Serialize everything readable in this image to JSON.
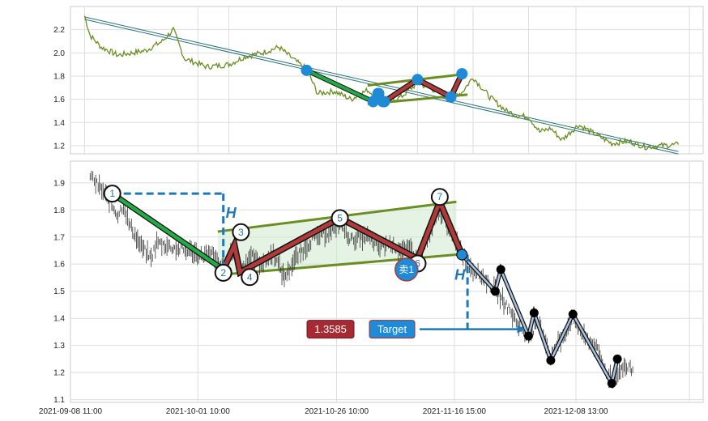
{
  "chart_data": [
    {
      "type": "line",
      "title": "",
      "panel": "overview",
      "ylim": [
        1.13,
        2.4
      ],
      "y_ticks": [
        1.2,
        1.4,
        1.6,
        1.8,
        2.0,
        2.2
      ],
      "grid": true,
      "price_color": "#6b8e23",
      "trendline": {
        "from": {
          "x": "2021-09-11",
          "y": 2.31
        },
        "to": {
          "x": "2021-12-27",
          "y": 1.15
        }
      },
      "price_keypoints": [
        {
          "x": "2021-09-11",
          "y": 2.32
        },
        {
          "x": "2021-09-12",
          "y": 2.15
        },
        {
          "x": "2021-09-14",
          "y": 2.05
        },
        {
          "x": "2021-09-17",
          "y": 1.98
        },
        {
          "x": "2021-09-22",
          "y": 2.02
        },
        {
          "x": "2021-09-25",
          "y": 2.1
        },
        {
          "x": "2021-09-27",
          "y": 2.2
        },
        {
          "x": "2021-09-29",
          "y": 1.95
        },
        {
          "x": "2021-10-03",
          "y": 1.88
        },
        {
          "x": "2021-10-07",
          "y": 1.9
        },
        {
          "x": "2021-10-10",
          "y": 1.97
        },
        {
          "x": "2021-10-13",
          "y": 2.0
        },
        {
          "x": "2021-10-16",
          "y": 2.05
        },
        {
          "x": "2021-10-19",
          "y": 1.93
        },
        {
          "x": "2021-10-21",
          "y": 1.86
        },
        {
          "x": "2021-10-23",
          "y": 1.65
        },
        {
          "x": "2021-10-26",
          "y": 1.67
        },
        {
          "x": "2021-10-29",
          "y": 1.6
        },
        {
          "x": "2021-11-01",
          "y": 1.68
        },
        {
          "x": "2021-11-04",
          "y": 1.57
        },
        {
          "x": "2021-11-07",
          "y": 1.62
        },
        {
          "x": "2021-11-10",
          "y": 1.74
        },
        {
          "x": "2021-11-13",
          "y": 1.68
        },
        {
          "x": "2021-11-16",
          "y": 1.63
        },
        {
          "x": "2021-11-18",
          "y": 1.66
        },
        {
          "x": "2021-11-20",
          "y": 1.79
        },
        {
          "x": "2021-11-23",
          "y": 1.62
        },
        {
          "x": "2021-11-26",
          "y": 1.5
        },
        {
          "x": "2021-11-28",
          "y": 1.46
        },
        {
          "x": "2021-11-30",
          "y": 1.45
        },
        {
          "x": "2021-12-02",
          "y": 1.32
        },
        {
          "x": "2021-12-04",
          "y": 1.35
        },
        {
          "x": "2021-12-06",
          "y": 1.25
        },
        {
          "x": "2021-12-09",
          "y": 1.38
        },
        {
          "x": "2021-12-12",
          "y": 1.3
        },
        {
          "x": "2021-12-15",
          "y": 1.22
        },
        {
          "x": "2021-12-18",
          "y": 1.24
        },
        {
          "x": "2021-12-21",
          "y": 1.19
        },
        {
          "x": "2021-12-24",
          "y": 1.2
        },
        {
          "x": "2021-12-27",
          "y": 1.21
        }
      ],
      "pattern_points": [
        {
          "x": "2021-10-21",
          "y": 1.85
        },
        {
          "x": "2021-11-02",
          "y": 1.58
        },
        {
          "x": "2021-11-03",
          "y": 1.65
        },
        {
          "x": "2021-11-04",
          "y": 1.58
        },
        {
          "x": "2021-11-10",
          "y": 1.77
        },
        {
          "x": "2021-11-16",
          "y": 1.62
        },
        {
          "x": "2021-11-18",
          "y": 1.82
        }
      ],
      "channel_upper": {
        "from": {
          "x": "2021-11-01",
          "y": 1.72
        },
        "to": {
          "x": "2021-11-19",
          "y": 1.82
        }
      },
      "channel_lower": {
        "from": {
          "x": "2021-11-01",
          "y": 1.56
        },
        "to": {
          "x": "2021-11-19",
          "y": 1.64
        }
      }
    },
    {
      "type": "line",
      "title": "",
      "panel": "detail",
      "ylim": [
        1.09,
        1.98
      ],
      "y_ticks": [
        1.1,
        1.2,
        1.3,
        1.4,
        1.5,
        1.6,
        1.7,
        1.8,
        1.9
      ],
      "x_ticks": [
        "2021-09-08 11:00",
        "2021-10-01 10:00",
        "2021-10-26 10:00",
        "2021-11-16 15:00",
        "2021-12-08 13:00"
      ],
      "grid": true,
      "points": [
        {
          "label": "1",
          "x": "2021-09-16",
          "y": 1.86
        },
        {
          "label": "2",
          "x": "2021-10-06",
          "y": 1.58
        },
        {
          "label": "3",
          "x": "2021-10-08",
          "y": 1.67
        },
        {
          "label": "4",
          "x": "2021-10-09",
          "y": 1.57
        },
        {
          "label": "5",
          "x": "2021-10-27",
          "y": 1.77
        },
        {
          "label": "6",
          "x": "2021-11-10",
          "y": 1.62
        },
        {
          "label": "7",
          "x": "2021-11-14",
          "y": 1.83
        }
      ],
      "breakout_point": {
        "x": "2021-11-18",
        "y": 1.635
      },
      "channel_upper": {
        "from": {
          "x": "2021-10-05",
          "y": 1.72
        },
        "to": {
          "x": "2021-11-17",
          "y": 1.83
        }
      },
      "channel_lower": {
        "from": {
          "x": "2021-10-05",
          "y": 1.56
        },
        "to": {
          "x": "2021-11-17",
          "y": 1.635
        }
      },
      "height_marker": {
        "label": "H",
        "top_y": 1.86,
        "bottom_y": 1.58,
        "x": "2021-10-06"
      },
      "projection_marker": {
        "label": "H",
        "top_y": 1.635,
        "bottom_y": 1.355,
        "x": "2021-11-19"
      },
      "sell_signal": {
        "label": "卖1",
        "x": "2021-11-08",
        "y": 1.58
      },
      "target": {
        "label": "Target",
        "value": "1.3585",
        "x_from": "2021-11-08",
        "x_to": "2021-11-30",
        "y": 1.36
      },
      "future_path": [
        {
          "x": "2021-11-18",
          "y": 1.635
        },
        {
          "x": "2021-11-24",
          "y": 1.5
        },
        {
          "x": "2021-11-25",
          "y": 1.58
        },
        {
          "x": "2021-11-30",
          "y": 1.335
        },
        {
          "x": "2021-12-01",
          "y": 1.42
        },
        {
          "x": "2021-12-04",
          "y": 1.245
        },
        {
          "x": "2021-12-08",
          "y": 1.415
        },
        {
          "x": "2021-12-15",
          "y": 1.16
        },
        {
          "x": "2021-12-16",
          "y": 1.25
        }
      ],
      "price_keypoints": [
        {
          "x": "2021-09-12",
          "y": 1.93
        },
        {
          "x": "2021-09-13",
          "y": 1.9
        },
        {
          "x": "2021-09-15",
          "y": 1.85
        },
        {
          "x": "2021-09-17",
          "y": 1.78
        },
        {
          "x": "2021-09-18",
          "y": 1.82
        },
        {
          "x": "2021-09-19",
          "y": 1.75
        },
        {
          "x": "2021-09-21",
          "y": 1.67
        },
        {
          "x": "2021-09-23",
          "y": 1.62
        },
        {
          "x": "2021-09-24",
          "y": 1.68
        },
        {
          "x": "2021-09-27",
          "y": 1.66
        },
        {
          "x": "2021-09-30",
          "y": 1.65
        },
        {
          "x": "2021-10-02",
          "y": 1.63
        },
        {
          "x": "2021-10-04",
          "y": 1.64
        },
        {
          "x": "2021-10-06",
          "y": 1.58
        },
        {
          "x": "2021-10-08",
          "y": 1.66
        },
        {
          "x": "2021-10-09",
          "y": 1.58
        },
        {
          "x": "2021-10-11",
          "y": 1.63
        },
        {
          "x": "2021-10-13",
          "y": 1.6
        },
        {
          "x": "2021-10-15",
          "y": 1.64
        },
        {
          "x": "2021-10-17",
          "y": 1.55
        },
        {
          "x": "2021-10-19",
          "y": 1.62
        },
        {
          "x": "2021-10-22",
          "y": 1.69
        },
        {
          "x": "2021-10-25",
          "y": 1.72
        },
        {
          "x": "2021-10-27",
          "y": 1.75
        },
        {
          "x": "2021-10-29",
          "y": 1.69
        },
        {
          "x": "2021-11-01",
          "y": 1.7
        },
        {
          "x": "2021-11-03",
          "y": 1.66
        },
        {
          "x": "2021-11-05",
          "y": 1.68
        },
        {
          "x": "2021-11-07",
          "y": 1.65
        },
        {
          "x": "2021-11-09",
          "y": 1.66
        },
        {
          "x": "2021-11-10",
          "y": 1.62
        },
        {
          "x": "2021-11-12",
          "y": 1.7
        },
        {
          "x": "2021-11-14",
          "y": 1.8
        },
        {
          "x": "2021-11-16",
          "y": 1.72
        },
        {
          "x": "2021-11-18",
          "y": 1.64
        },
        {
          "x": "2021-11-20",
          "y": 1.58
        },
        {
          "x": "2021-11-22",
          "y": 1.55
        },
        {
          "x": "2021-11-24",
          "y": 1.5
        },
        {
          "x": "2021-11-26",
          "y": 1.45
        },
        {
          "x": "2021-11-28",
          "y": 1.38
        },
        {
          "x": "2021-11-30",
          "y": 1.34
        },
        {
          "x": "2021-12-02",
          "y": 1.38
        },
        {
          "x": "2021-12-04",
          "y": 1.26
        },
        {
          "x": "2021-12-06",
          "y": 1.33
        },
        {
          "x": "2021-12-08",
          "y": 1.4
        },
        {
          "x": "2021-12-10",
          "y": 1.33
        },
        {
          "x": "2021-12-12",
          "y": 1.3
        },
        {
          "x": "2021-12-14",
          "y": 1.2
        },
        {
          "x": "2021-12-15",
          "y": 1.18
        },
        {
          "x": "2021-12-17",
          "y": 1.22
        },
        {
          "x": "2021-12-19",
          "y": 1.21
        }
      ]
    }
  ]
}
